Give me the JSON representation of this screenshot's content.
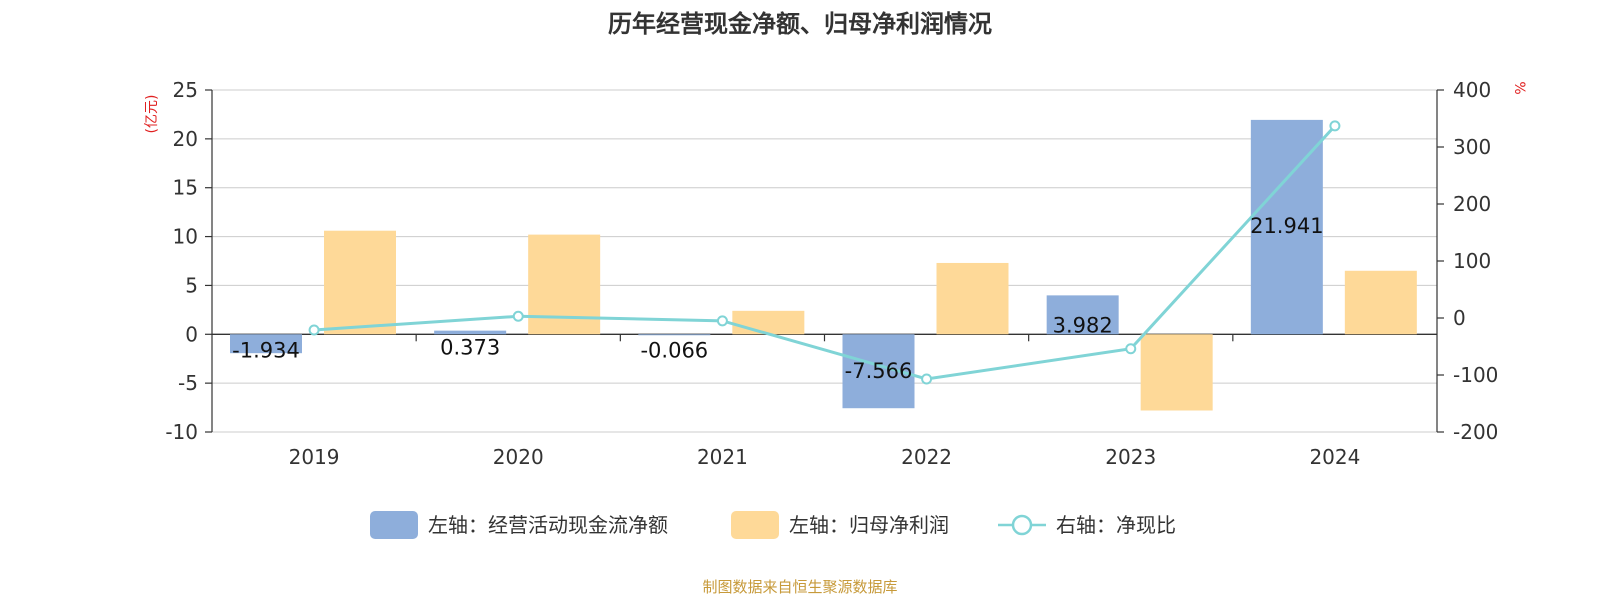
{
  "chart_data": {
    "type": "bar",
    "title": "历年经营现金净额、归母净利润情况",
    "categories": [
      "2019",
      "2020",
      "2021",
      "2022",
      "2023",
      "2024"
    ],
    "left_axis": {
      "unit": "(亿元)",
      "ylim": [
        -10,
        25
      ],
      "ticks": [
        25,
        20,
        15,
        10,
        5,
        0,
        -5,
        -10
      ]
    },
    "right_axis": {
      "unit": "%",
      "ylim": [
        -200,
        400
      ],
      "ticks": [
        400,
        300,
        200,
        100,
        0,
        -100,
        -200
      ]
    },
    "series": [
      {
        "name": "左轴：经营活动现金流净额",
        "type": "bar",
        "axis": "left",
        "color": "#8eaedb",
        "values": [
          -1.934,
          0.373,
          -0.066,
          -7.566,
          3.982,
          21.941
        ],
        "labels": [
          "-1.934",
          "0.373",
          "-0.066",
          "-7.566",
          "3.982",
          "21.941"
        ]
      },
      {
        "name": "左轴：归母净利润",
        "type": "bar",
        "axis": "left",
        "color": "#fed998",
        "values": [
          10.6,
          10.2,
          2.4,
          7.3,
          -7.8,
          6.5
        ]
      },
      {
        "name": "右轴：净现比",
        "type": "line",
        "axis": "right",
        "color": "#80d4d6",
        "values": [
          -21,
          3,
          -5,
          -107,
          -54,
          337
        ]
      }
    ],
    "grid": true,
    "legend": "bottom",
    "source": "制图数据来自恒生聚源数据库"
  }
}
